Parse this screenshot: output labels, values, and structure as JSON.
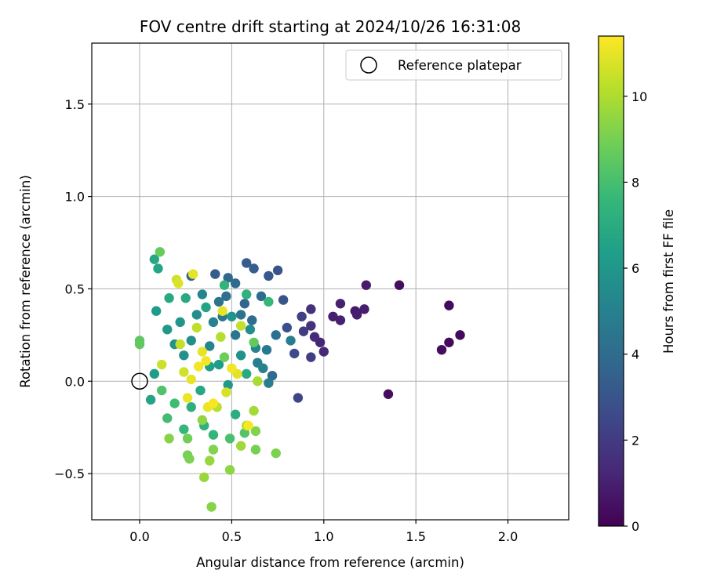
{
  "chart_data": {
    "type": "scatter",
    "title": "FOV centre drift starting at 2024/10/26 16:31:08",
    "xlabel": "Angular distance from reference (arcmin)",
    "ylabel": "Rotation from reference (arcmin)",
    "xlim": [
      -0.26,
      2.33
    ],
    "ylim": [
      -0.75,
      1.83
    ],
    "xticks": [
      0.0,
      0.5,
      1.0,
      1.5,
      2.0
    ],
    "xtick_labels": [
      "0.0",
      "0.5",
      "1.0",
      "1.5",
      "2.0"
    ],
    "yticks": [
      -0.5,
      0.0,
      0.5,
      1.0,
      1.5
    ],
    "ytick_labels": [
      "−0.5",
      "0.0",
      "0.5",
      "1.0",
      "1.5"
    ],
    "grid": true,
    "legend": {
      "placement": "top-right",
      "label": "Reference platepar"
    },
    "reference_point": {
      "x": 0.0,
      "y": 0.0
    },
    "colorbar": {
      "label": "Hours from first FF file",
      "colormap": "viridis",
      "range": [
        0,
        11.4
      ],
      "ticks": [
        0,
        2,
        4,
        6,
        8,
        10
      ],
      "tick_labels": [
        "0",
        "2",
        "4",
        "6",
        "8",
        "10"
      ]
    },
    "colormap_stops": [
      "#440154",
      "#482878",
      "#3e4989",
      "#31688e",
      "#26828e",
      "#1f9e89",
      "#35b779",
      "#6ece58",
      "#b5de2b",
      "#fde725"
    ],
    "point_value_variable": "hours",
    "points": [
      {
        "x": 1.74,
        "y": 0.25,
        "hours": 0.3
      },
      {
        "x": 1.68,
        "y": 0.21,
        "hours": 0.3
      },
      {
        "x": 1.68,
        "y": 0.41,
        "hours": 0.3
      },
      {
        "x": 1.64,
        "y": 0.17,
        "hours": 0.4
      },
      {
        "x": 1.41,
        "y": 0.52,
        "hours": 0.4
      },
      {
        "x": 1.35,
        "y": -0.07,
        "hours": 0.4
      },
      {
        "x": 1.23,
        "y": 0.52,
        "hours": 0.8
      },
      {
        "x": 1.22,
        "y": 0.39,
        "hours": 0.9
      },
      {
        "x": 1.17,
        "y": 0.38,
        "hours": 0.8
      },
      {
        "x": 1.18,
        "y": 0.36,
        "hours": 0.9
      },
      {
        "x": 1.09,
        "y": 0.42,
        "hours": 1.0
      },
      {
        "x": 1.09,
        "y": 0.33,
        "hours": 1.0
      },
      {
        "x": 1.05,
        "y": 0.35,
        "hours": 0.9
      },
      {
        "x": 1.0,
        "y": 0.16,
        "hours": 1.3
      },
      {
        "x": 0.98,
        "y": 0.21,
        "hours": 1.2
      },
      {
        "x": 0.95,
        "y": 0.24,
        "hours": 1.4
      },
      {
        "x": 0.93,
        "y": 0.3,
        "hours": 1.6
      },
      {
        "x": 0.93,
        "y": 0.39,
        "hours": 1.6
      },
      {
        "x": 0.93,
        "y": 0.13,
        "hours": 2.1
      },
      {
        "x": 0.89,
        "y": 0.27,
        "hours": 2.0
      },
      {
        "x": 0.88,
        "y": 0.35,
        "hours": 2.2
      },
      {
        "x": 0.86,
        "y": -0.09,
        "hours": 2.4
      },
      {
        "x": 0.84,
        "y": 0.15,
        "hours": 2.6
      },
      {
        "x": 0.8,
        "y": 0.29,
        "hours": 2.8
      },
      {
        "x": 0.78,
        "y": 0.44,
        "hours": 3.0
      },
      {
        "x": 0.75,
        "y": 0.6,
        "hours": 3.0
      },
      {
        "x": 0.7,
        "y": 0.57,
        "hours": 3.1
      },
      {
        "x": 0.62,
        "y": 0.61,
        "hours": 3.4
      },
      {
        "x": 0.58,
        "y": 0.64,
        "hours": 3.4
      },
      {
        "x": 0.41,
        "y": 0.58,
        "hours": 3.3
      },
      {
        "x": 0.28,
        "y": 0.57,
        "hours": 3.6
      },
      {
        "x": 0.48,
        "y": 0.56,
        "hours": 3.8
      },
      {
        "x": 0.52,
        "y": 0.53,
        "hours": 3.9
      },
      {
        "x": 0.82,
        "y": 0.22,
        "hours": 4.8
      },
      {
        "x": 0.72,
        "y": 0.03,
        "hours": 3.9
      },
      {
        "x": 0.66,
        "y": 0.46,
        "hours": 4.0
      },
      {
        "x": 0.74,
        "y": 0.25,
        "hours": 4.1
      },
      {
        "x": 0.69,
        "y": 0.17,
        "hours": 4.6
      },
      {
        "x": 0.64,
        "y": 0.1,
        "hours": 4.9
      },
      {
        "x": 0.61,
        "y": 0.33,
        "hours": 4.0
      },
      {
        "x": 0.57,
        "y": 0.42,
        "hours": 3.7
      },
      {
        "x": 0.55,
        "y": 0.36,
        "hours": 4.4
      },
      {
        "x": 0.52,
        "y": 0.25,
        "hours": 4.5
      },
      {
        "x": 0.47,
        "y": 0.46,
        "hours": 4.2
      },
      {
        "x": 0.45,
        "y": 0.35,
        "hours": 4.6
      },
      {
        "x": 0.43,
        "y": 0.43,
        "hours": 4.3
      },
      {
        "x": 0.4,
        "y": 0.32,
        "hours": 5.0
      },
      {
        "x": 0.38,
        "y": 0.19,
        "hours": 5.2
      },
      {
        "x": 0.34,
        "y": 0.47,
        "hours": 5.2
      },
      {
        "x": 0.31,
        "y": 0.36,
        "hours": 5.5
      },
      {
        "x": 0.28,
        "y": 0.22,
        "hours": 5.6
      },
      {
        "x": 0.24,
        "y": 0.14,
        "hours": 5.7
      },
      {
        "x": 0.22,
        "y": 0.32,
        "hours": 5.9
      },
      {
        "x": 0.19,
        "y": 0.2,
        "hours": 5.8
      },
      {
        "x": 0.15,
        "y": 0.28,
        "hours": 6.1
      },
      {
        "x": 0.09,
        "y": 0.38,
        "hours": 6.2
      },
      {
        "x": 0.08,
        "y": 0.04,
        "hours": 6.3
      },
      {
        "x": 0.06,
        "y": -0.1,
        "hours": 6.6
      },
      {
        "x": 0.1,
        "y": 0.61,
        "hours": 6.7
      },
      {
        "x": 0.08,
        "y": 0.66,
        "hours": 6.8
      },
      {
        "x": 0.16,
        "y": 0.45,
        "hours": 6.9
      },
      {
        "x": 0.25,
        "y": 0.45,
        "hours": 6.9
      },
      {
        "x": 0.36,
        "y": 0.4,
        "hours": 6.6
      },
      {
        "x": 0.43,
        "y": 0.09,
        "hours": 6.3
      },
      {
        "x": 0.48,
        "y": -0.02,
        "hours": 6.1
      },
      {
        "x": 0.55,
        "y": 0.14,
        "hours": 5.8
      },
      {
        "x": 0.6,
        "y": 0.28,
        "hours": 5.5
      },
      {
        "x": 0.63,
        "y": 0.18,
        "hours": 5.2
      },
      {
        "x": 0.67,
        "y": 0.07,
        "hours": 5.1
      },
      {
        "x": 0.7,
        "y": -0.01,
        "hours": 4.8
      },
      {
        "x": 0.5,
        "y": 0.35,
        "hours": 5.9
      },
      {
        "x": 0.38,
        "y": 0.08,
        "hours": 6.4
      },
      {
        "x": 0.33,
        "y": -0.05,
        "hours": 6.8
      },
      {
        "x": 0.28,
        "y": -0.14,
        "hours": 7.2
      },
      {
        "x": 0.24,
        "y": -0.26,
        "hours": 7.6
      },
      {
        "x": 0.35,
        "y": -0.24,
        "hours": 7.3
      },
      {
        "x": 0.4,
        "y": -0.29,
        "hours": 7.5
      },
      {
        "x": 0.49,
        "y": -0.31,
        "hours": 8.1
      },
      {
        "x": 0.57,
        "y": -0.28,
        "hours": 8.3
      },
      {
        "x": 0.46,
        "y": 0.52,
        "hours": 7.4
      },
      {
        "x": 0.58,
        "y": 0.47,
        "hours": 7.3
      },
      {
        "x": 0.7,
        "y": 0.43,
        "hours": 7.6
      },
      {
        "x": 0.58,
        "y": 0.04,
        "hours": 6.9
      },
      {
        "x": 0.52,
        "y": -0.18,
        "hours": 7.1
      },
      {
        "x": 0.19,
        "y": -0.12,
        "hours": 7.8
      },
      {
        "x": 0.15,
        "y": -0.2,
        "hours": 7.9
      },
      {
        "x": 0.12,
        "y": -0.05,
        "hours": 8.2
      },
      {
        "x": 0.0,
        "y": 0.22,
        "hours": 8.5
      },
      {
        "x": 0.0,
        "y": 0.2,
        "hours": 8.6
      },
      {
        "x": 0.11,
        "y": 0.7,
        "hours": 8.7
      },
      {
        "x": 0.62,
        "y": 0.21,
        "hours": 8.6
      },
      {
        "x": 0.46,
        "y": 0.13,
        "hours": 8.8
      },
      {
        "x": 0.26,
        "y": -0.31,
        "hours": 8.9
      },
      {
        "x": 0.26,
        "y": -0.4,
        "hours": 9.0
      },
      {
        "x": 0.27,
        "y": -0.42,
        "hours": 9.1
      },
      {
        "x": 0.16,
        "y": -0.31,
        "hours": 9.3
      },
      {
        "x": 0.4,
        "y": -0.37,
        "hours": 9.2
      },
      {
        "x": 0.34,
        "y": -0.21,
        "hours": 9.5
      },
      {
        "x": 0.38,
        "y": -0.43,
        "hours": 9.6
      },
      {
        "x": 0.35,
        "y": -0.52,
        "hours": 9.6
      },
      {
        "x": 0.39,
        "y": -0.68,
        "hours": 9.3
      },
      {
        "x": 0.49,
        "y": -0.48,
        "hours": 9.4
      },
      {
        "x": 0.63,
        "y": -0.37,
        "hours": 9.0
      },
      {
        "x": 0.74,
        "y": -0.39,
        "hours": 9.1
      },
      {
        "x": 0.63,
        "y": -0.27,
        "hours": 9.2
      },
      {
        "x": 0.55,
        "y": -0.35,
        "hours": 9.7
      },
      {
        "x": 0.58,
        "y": -0.24,
        "hours": 10.0
      },
      {
        "x": 0.62,
        "y": -0.16,
        "hours": 9.8
      },
      {
        "x": 0.64,
        "y": 0.0,
        "hours": 9.9
      },
      {
        "x": 0.42,
        "y": -0.14,
        "hours": 10.2
      },
      {
        "x": 0.44,
        "y": 0.24,
        "hours": 10.1
      },
      {
        "x": 0.31,
        "y": 0.29,
        "hours": 10.3
      },
      {
        "x": 0.22,
        "y": 0.2,
        "hours": 10.4
      },
      {
        "x": 0.2,
        "y": 0.55,
        "hours": 10.6
      },
      {
        "x": 0.21,
        "y": 0.53,
        "hours": 10.8
      },
      {
        "x": 0.29,
        "y": 0.58,
        "hours": 11.0
      },
      {
        "x": 0.12,
        "y": 0.09,
        "hours": 10.5
      },
      {
        "x": 0.28,
        "y": 0.01,
        "hours": 11.0
      },
      {
        "x": 0.32,
        "y": 0.08,
        "hours": 11.2
      },
      {
        "x": 0.37,
        "y": -0.14,
        "hours": 11.1
      },
      {
        "x": 0.4,
        "y": -0.12,
        "hours": 11.3
      },
      {
        "x": 0.45,
        "y": 0.38,
        "hours": 11.0
      },
      {
        "x": 0.5,
        "y": 0.07,
        "hours": 11.2
      },
      {
        "x": 0.59,
        "y": -0.24,
        "hours": 11.3
      },
      {
        "x": 0.36,
        "y": 0.11,
        "hours": 11.2
      },
      {
        "x": 0.26,
        "y": -0.09,
        "hours": 11.1
      },
      {
        "x": 0.34,
        "y": 0.16,
        "hours": 11.0
      },
      {
        "x": 0.55,
        "y": 0.3,
        "hours": 10.4
      },
      {
        "x": 0.47,
        "y": -0.06,
        "hours": 10.7
      },
      {
        "x": 0.53,
        "y": 0.04,
        "hours": 10.9
      },
      {
        "x": 0.24,
        "y": 0.05,
        "hours": 10.6
      }
    ]
  }
}
